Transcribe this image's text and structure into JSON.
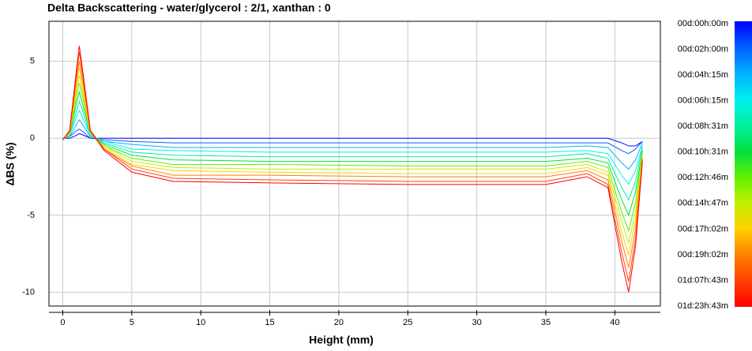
{
  "chart_data": {
    "type": "line",
    "title": "Delta Backscattering - water/glycerol : 2/1, xanthan : 0",
    "x_label": "Height (mm)",
    "y_label": "ΔBS (%)",
    "x": [
      0,
      0.5,
      1,
      1.2,
      1.5,
      2,
      3,
      5,
      8,
      15,
      25,
      35,
      38,
      39.5,
      40.5,
      41,
      41.5,
      42
    ],
    "series": [
      {
        "name": "00d:00h:00m",
        "color": "#0000ff",
        "values": [
          0,
          0,
          0.2,
          0.3,
          0.2,
          0,
          0,
          0,
          0,
          0,
          0,
          0,
          0,
          0,
          -0.3,
          -0.5,
          -0.5,
          -0.2
        ]
      },
      {
        "name": "00d:02h:00m",
        "color": "#0060ff",
        "values": [
          0,
          0.1,
          0.5,
          0.6,
          0.4,
          0,
          -0.1,
          -0.2,
          -0.3,
          -0.3,
          -0.3,
          -0.3,
          -0.3,
          -0.3,
          -0.8,
          -1,
          -0.7,
          -0.2
        ]
      },
      {
        "name": "00d:04h:15m",
        "color": "#00b0ff",
        "values": [
          0,
          0.1,
          0.9,
          1.2,
          0.8,
          0.1,
          -0.2,
          -0.4,
          -0.6,
          -0.6,
          -0.6,
          -0.6,
          -0.5,
          -0.6,
          -1.6,
          -2,
          -1.4,
          -0.3
        ]
      },
      {
        "name": "00d:06h:15m",
        "color": "#00f0f0",
        "values": [
          0,
          0.2,
          1.4,
          1.8,
          1.2,
          0.2,
          -0.2,
          -0.7,
          -0.8,
          -0.9,
          -0.9,
          -0.9,
          -0.8,
          -1,
          -2.4,
          -3,
          -2.1,
          -0.5
        ]
      },
      {
        "name": "00d:08h:31m",
        "color": "#00f0a0",
        "values": [
          0,
          0.2,
          1.8,
          2.4,
          1.6,
          0.2,
          -0.3,
          -0.9,
          -1.1,
          -1.2,
          -1.2,
          -1.2,
          -1,
          -1.3,
          -3.2,
          -4,
          -2.8,
          -0.6
        ]
      },
      {
        "name": "00d:10h:31m",
        "color": "#00e040",
        "values": [
          -0.1,
          0.3,
          2.3,
          3,
          2,
          0.3,
          -0.4,
          -1.1,
          -1.4,
          -1.5,
          -1.5,
          -1.5,
          -1.3,
          -1.6,
          -4,
          -5,
          -3.5,
          -0.8
        ]
      },
      {
        "name": "00d:12h:46m",
        "color": "#60f000",
        "values": [
          -0.1,
          0.3,
          2.7,
          3.6,
          2.4,
          0.3,
          -0.5,
          -1.3,
          -1.7,
          -1.7,
          -1.8,
          -1.8,
          -1.5,
          -1.9,
          -4.8,
          -6,
          -4.2,
          -0.9
        ]
      },
      {
        "name": "00d:14h:47m",
        "color": "#c0f000",
        "values": [
          -0.1,
          0.3,
          3.1,
          4.1,
          2.7,
          0.3,
          -0.5,
          -1.5,
          -1.9,
          -2,
          -2,
          -2,
          -1.7,
          -2.2,
          -5.4,
          -6.8,
          -4.8,
          -1
        ]
      },
      {
        "name": "00d:17h:02m",
        "color": "#ffd000",
        "values": [
          -0.1,
          0.4,
          3.4,
          4.6,
          3,
          0.4,
          -0.6,
          -1.7,
          -2.1,
          -2.2,
          -2.3,
          -2.3,
          -1.9,
          -2.4,
          -6.1,
          -7.6,
          -5.3,
          -1.1
        ]
      },
      {
        "name": "00d:19h:02m",
        "color": "#ff8000",
        "values": [
          -0.1,
          0.4,
          3.8,
          5,
          3.4,
          0.4,
          -0.7,
          -1.8,
          -2.4,
          -2.4,
          -2.5,
          -2.5,
          -2.1,
          -2.7,
          -6.7,
          -8.4,
          -5.9,
          -1.3
        ]
      },
      {
        "name": "01d:07h:43m",
        "color": "#ff4000",
        "values": [
          -0.1,
          0.5,
          4.2,
          5.6,
          3.7,
          0.5,
          -0.7,
          -2,
          -2.6,
          -2.7,
          -2.8,
          -2.8,
          -2.3,
          -3,
          -7.4,
          -9.3,
          -6.5,
          -1.4
        ]
      },
      {
        "name": "01d:23h:43m",
        "color": "#ff0000",
        "values": [
          -0.1,
          0.5,
          4.5,
          6,
          4,
          0.5,
          -0.8,
          -2.2,
          -2.8,
          -2.9,
          -3,
          -3,
          -2.5,
          -3.2,
          -8,
          -10,
          -7,
          -1.5
        ]
      }
    ],
    "xlim": [
      -1,
      43.3
    ],
    "ylim": [
      -10.9,
      7.6
    ],
    "xticks": [
      0,
      5,
      10,
      15,
      20,
      25,
      30,
      35,
      40
    ],
    "yticks": [
      -10,
      -5,
      0,
      5
    ],
    "grid": true
  }
}
